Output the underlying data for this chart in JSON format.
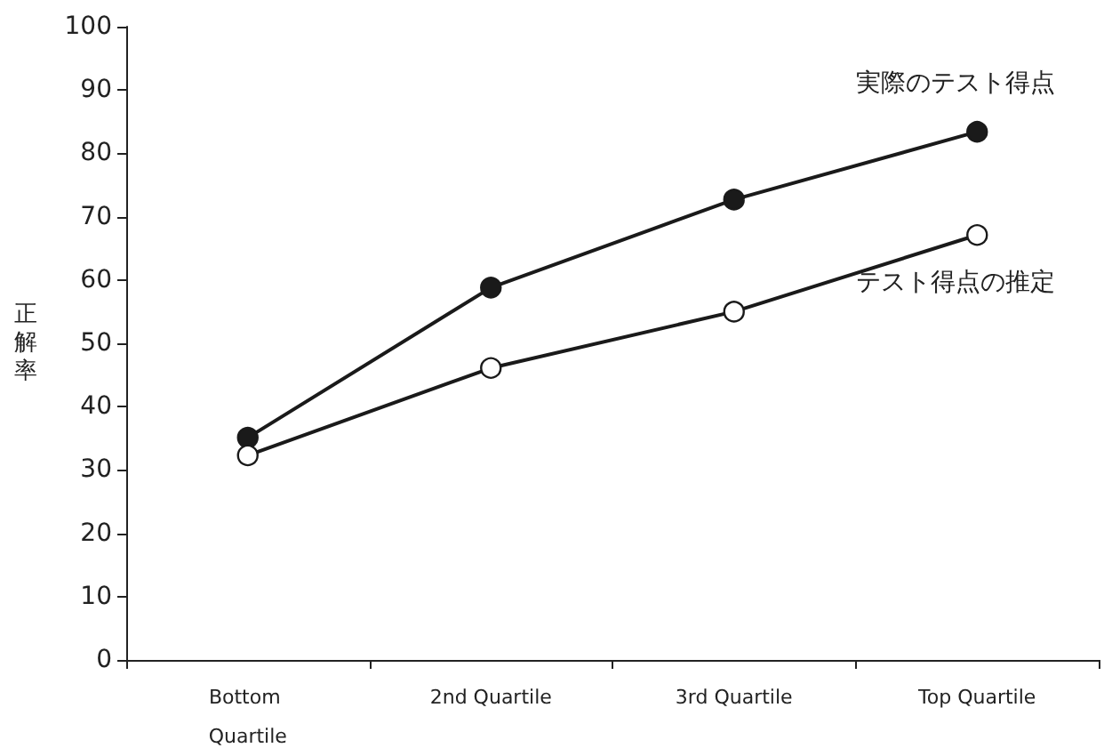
{
  "chart_data": {
    "type": "line",
    "ylabel": "正解率",
    "categories": [
      "Bottom Quartile",
      "2nd Quartile",
      "3rd Quartile",
      "Top Quartile"
    ],
    "series": [
      {
        "name": "実際のテスト得点",
        "color": "#1a1a1a",
        "values": [
          35.1,
          58.8,
          72.7,
          83.4
        ]
      },
      {
        "name": "テスト得点の推定",
        "color": "#1a1a1a",
        "values": [
          32.3,
          46.1,
          55.0,
          67.1
        ]
      }
    ],
    "ylim": [
      0,
      100
    ],
    "yticks": [
      0,
      10,
      20,
      30,
      40,
      50,
      60,
      70,
      80,
      90,
      100
    ],
    "grid": false,
    "legend": false,
    "marker": "circle",
    "line_style": "solid"
  }
}
